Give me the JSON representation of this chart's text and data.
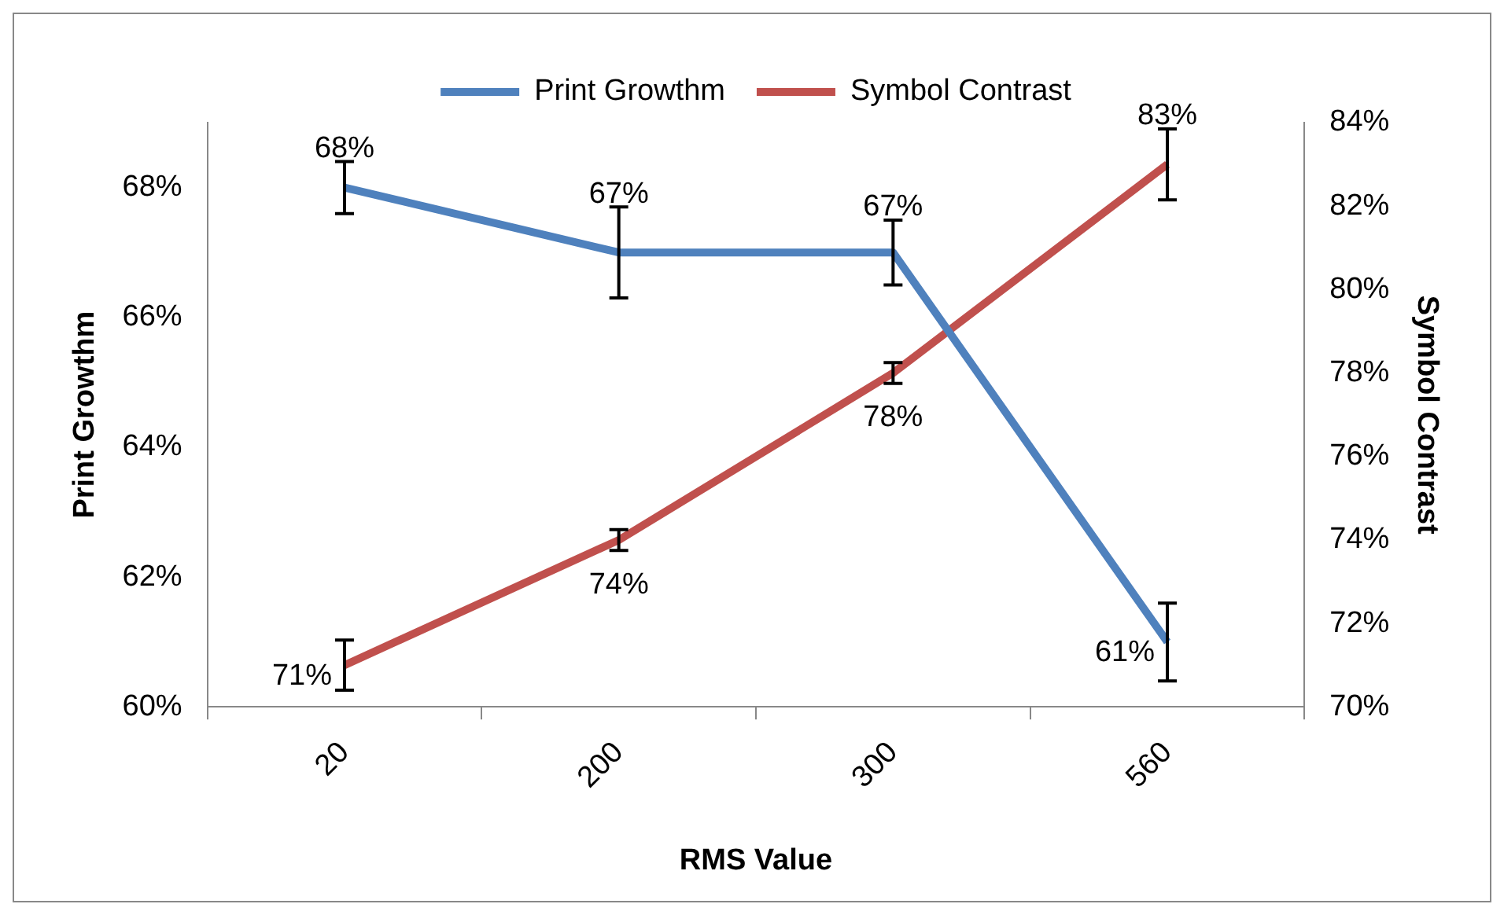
{
  "chart_data": {
    "type": "line",
    "xlabel": "RMS Value",
    "ylabel": "Print Growthm",
    "y2label": "Symbol Contrast",
    "categories": [
      "20",
      "200",
      "300",
      "560"
    ],
    "series": [
      {
        "name": "Print Growthm",
        "color": "#4f81bd",
        "values": [
          68,
          67,
          67,
          61
        ],
        "errors": [
          0.4,
          0.7,
          0.5,
          0.6
        ],
        "value_labels": [
          "68%",
          "67%",
          "67%",
          "61%"
        ]
      },
      {
        "name": "Symbol Contrast",
        "color": "#c0504d",
        "axis": "y2",
        "values": [
          71,
          74,
          78,
          83
        ],
        "errors": [
          0.6,
          0.25,
          0.25,
          0.85
        ],
        "value_labels": [
          "71%",
          "74%",
          "78%",
          "83%"
        ]
      }
    ],
    "ylim": [
      60,
      69
    ],
    "yticks": [
      {
        "value": 60,
        "label": "60%"
      },
      {
        "value": 62,
        "label": "62%"
      },
      {
        "value": 64,
        "label": "64%"
      },
      {
        "value": 66,
        "label": "66%"
      },
      {
        "value": 68,
        "label": "68%"
      }
    ],
    "y2lim": [
      70,
      84
    ],
    "y2ticks": [
      {
        "value": 70,
        "label": "70%"
      },
      {
        "value": 72,
        "label": "72%"
      },
      {
        "value": 74,
        "label": "74%"
      },
      {
        "value": 76,
        "label": "76%"
      },
      {
        "value": 78,
        "label": "78%"
      },
      {
        "value": 80,
        "label": "80%"
      },
      {
        "value": 82,
        "label": "82%"
      },
      {
        "value": 84,
        "label": "84%"
      }
    ],
    "grid": false,
    "legend": "top",
    "line_style": "solid"
  }
}
